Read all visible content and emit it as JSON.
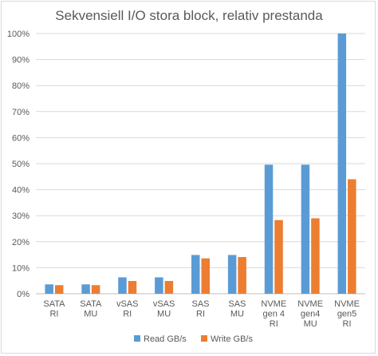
{
  "chart_data": {
    "type": "bar",
    "title": "Sekvensiell I/O stora block, relativ prestanda",
    "xlabel": "",
    "ylabel": "",
    "ylim": [
      0,
      100
    ],
    "y_ticks": [
      "0%",
      "10%",
      "20%",
      "30%",
      "40%",
      "50%",
      "60%",
      "70%",
      "80%",
      "90%",
      "100%"
    ],
    "grid": true,
    "legend_position": "bottom",
    "categories": [
      [
        "SATA",
        "RI"
      ],
      [
        "SATA",
        "MU"
      ],
      [
        "vSAS",
        "RI"
      ],
      [
        "vSAS",
        "MU"
      ],
      [
        "SAS",
        "RI"
      ],
      [
        "SAS",
        "MU"
      ],
      [
        "NVME",
        "gen 4",
        "RI"
      ],
      [
        "NVME",
        "gen4",
        "MU"
      ],
      [
        "NVME",
        "gen5",
        "RI"
      ]
    ],
    "series": [
      {
        "name": "Read GB/s",
        "color": "#5b9bd5",
        "values": [
          3.6,
          3.6,
          6.3,
          6.3,
          14.9,
          14.9,
          49.6,
          49.6,
          100
        ]
      },
      {
        "name": "Write GB/s",
        "color": "#ed7d31",
        "values": [
          3.3,
          3.3,
          4.9,
          4.9,
          13.6,
          14.1,
          28.3,
          29.0,
          44.0
        ]
      }
    ]
  }
}
